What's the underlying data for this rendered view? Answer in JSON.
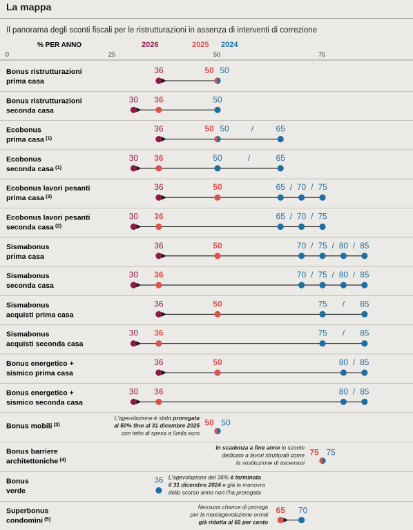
{
  "header": {
    "title": "La mappa",
    "subtitle": "Il panorama degli sconti fiscali per le ristrutturazioni in assenza di interventi di correzione"
  },
  "chart_data": {
    "type": "dot-arrow",
    "unit_label": "% PER ANNO",
    "xlim": [
      0,
      100
    ],
    "ticks": [
      0,
      25,
      50,
      75
    ],
    "legend": [
      {
        "year": "2026",
        "color": "#8b1a4a"
      },
      {
        "year": "2025",
        "color": "#d9534f"
      },
      {
        "year": "2024",
        "color": "#1f6f9f"
      }
    ],
    "colors": {
      "y2026": "#8b1a4a",
      "y2025": "#d9534f",
      "y2024": "#1f6f9f",
      "half": "#d9534f"
    },
    "rows": [
      {
        "line1": "Bonus ristrutturazioni",
        "line2": "prima casa",
        "note": "",
        "v2026": 36,
        "v2026b": null,
        "v2025": 50,
        "v2024": [
          50
        ],
        "sep": [
          " "
        ],
        "shared": true
      },
      {
        "line1": "Bonus ristrutturazioni",
        "line2": "seconda casa",
        "note": "",
        "v2026": 30,
        "v2026b": null,
        "v2025": 36,
        "v2024": [
          50
        ],
        "sep": [
          " "
        ],
        "shared": false
      },
      {
        "line1": "Ecobonus",
        "line2": "prima casa",
        "note": "(1)",
        "v2026": 36,
        "v2026b": null,
        "v2025": 50,
        "v2024": [
          50,
          65
        ],
        "sep": [
          "/"
        ],
        "shared": true
      },
      {
        "line1": "Ecobonus",
        "line2": "seconda casa",
        "note": "(1)",
        "v2026": 30,
        "v2026b": null,
        "v2025": 36,
        "v2024": [
          50,
          65
        ],
        "sep": [
          "/"
        ],
        "shared": false
      },
      {
        "line1": "Ecobonus lavori pesanti",
        "line2": "prima casa",
        "note": "(2)",
        "v2026": 36,
        "v2026b": null,
        "v2025": 50,
        "v2024": [
          65,
          70,
          75
        ],
        "sep": [
          "/",
          "/"
        ],
        "shared": false
      },
      {
        "line1": "Ecobonus lavori pesanti",
        "line2": "seconda casa",
        "note": "(2)",
        "v2026": 30,
        "v2026b": null,
        "v2025": 36,
        "v2024": [
          65,
          70,
          75
        ],
        "sep": [
          "/",
          "/"
        ],
        "shared": false
      },
      {
        "line1": "Sismabonus",
        "line2": "prima casa",
        "note": "",
        "v2026": 36,
        "v2026b": null,
        "v2025": 50,
        "v2024": [
          70,
          75,
          80,
          85
        ],
        "sep": [
          "/",
          "/",
          "/"
        ],
        "shared": false
      },
      {
        "line1": "Sismabonus",
        "line2": "seconda casa",
        "note": "",
        "v2026": 30,
        "v2026b": null,
        "v2025": 36,
        "v2024": [
          70,
          75,
          80,
          85
        ],
        "sep": [
          "/",
          "/",
          "/"
        ],
        "shared": false
      },
      {
        "line1": "Sismabonus",
        "line2": "acquisti prima casa",
        "note": "",
        "v2026": 36,
        "v2026b": null,
        "v2025": 50,
        "v2024": [
          75,
          85
        ],
        "sep": [
          "/"
        ],
        "shared": false
      },
      {
        "line1": "Sismabonus",
        "line2": "acquisti seconda casa",
        "note": "",
        "v2026": 30,
        "v2026b": null,
        "v2025": 36,
        "v2024": [
          75,
          85
        ],
        "sep": [
          "/"
        ],
        "shared": false
      },
      {
        "line1": "Bonus energetico +",
        "line2": "sismico prima casa",
        "note": "",
        "v2026": 36,
        "v2026b": null,
        "v2025": 50,
        "v2024": [
          80,
          85
        ],
        "sep": [
          "/"
        ],
        "shared": false
      },
      {
        "line1": "Bonus energetico +",
        "line2": "sismico seconda casa",
        "note": "",
        "v2026": 30,
        "v2026b": null,
        "v2025": 36,
        "v2024": [
          80,
          85
        ],
        "sep": [
          "/"
        ],
        "shared": false
      }
    ],
    "special": [
      {
        "line1": "Bonus mobili",
        "line2": "",
        "note": "(3)",
        "v2025": 50,
        "v2024": 50,
        "annotation": [
          [
            {
              "t": "L'agevolazione è stata ",
              "b": false
            },
            {
              "t": "prorogata",
              "b": true
            }
          ],
          [
            {
              "t": "al 50% fino al 31 dicembre 2025",
              "b": true
            }
          ],
          [
            {
              "t": "con tetto di spesa a 5mila euro",
              "b": false
            }
          ]
        ]
      },
      {
        "line1": "Bonus barriere",
        "line2": "architettoniche",
        "note": "(4)",
        "v2025": 75,
        "v2024": 75,
        "annotation": [
          [
            {
              "t": "In scadenza a fine anno",
              "b": true
            },
            {
              "t": " lo sconto",
              "b": false
            }
          ],
          [
            {
              "t": "dedicato a lavori strutturali come",
              "b": false
            }
          ],
          [
            {
              "t": "la sostituzione di ascensori",
              "b": false
            }
          ]
        ]
      },
      {
        "line1": "Bonus",
        "line2": "verde",
        "note": "",
        "v2024": 36,
        "annotation": [
          [
            {
              "t": "L'agevolazione del 36% ",
              "b": false
            },
            {
              "t": "è terminata",
              "b": true
            }
          ],
          [
            {
              "t": "il 31 dicembre 2024",
              "b": true
            },
            {
              "t": " e già la manovra",
              "b": false
            }
          ],
          [
            {
              "t": "dello scorso anno non l'ha prorogata",
              "b": false
            }
          ]
        ]
      },
      {
        "line1": "Superbonus",
        "line2": "condomìni",
        "note": "(5)",
        "v2025": 65,
        "v2024": 70,
        "annotation": [
          [
            {
              "t": "Nessuna chance di proroga",
              "b": false
            }
          ],
          [
            {
              "t": "per la maxiagevolezione ormai",
              "b": false
            }
          ],
          [
            {
              "t": "già ridotta al 65 per cento",
              "b": true
            }
          ]
        ]
      }
    ]
  }
}
